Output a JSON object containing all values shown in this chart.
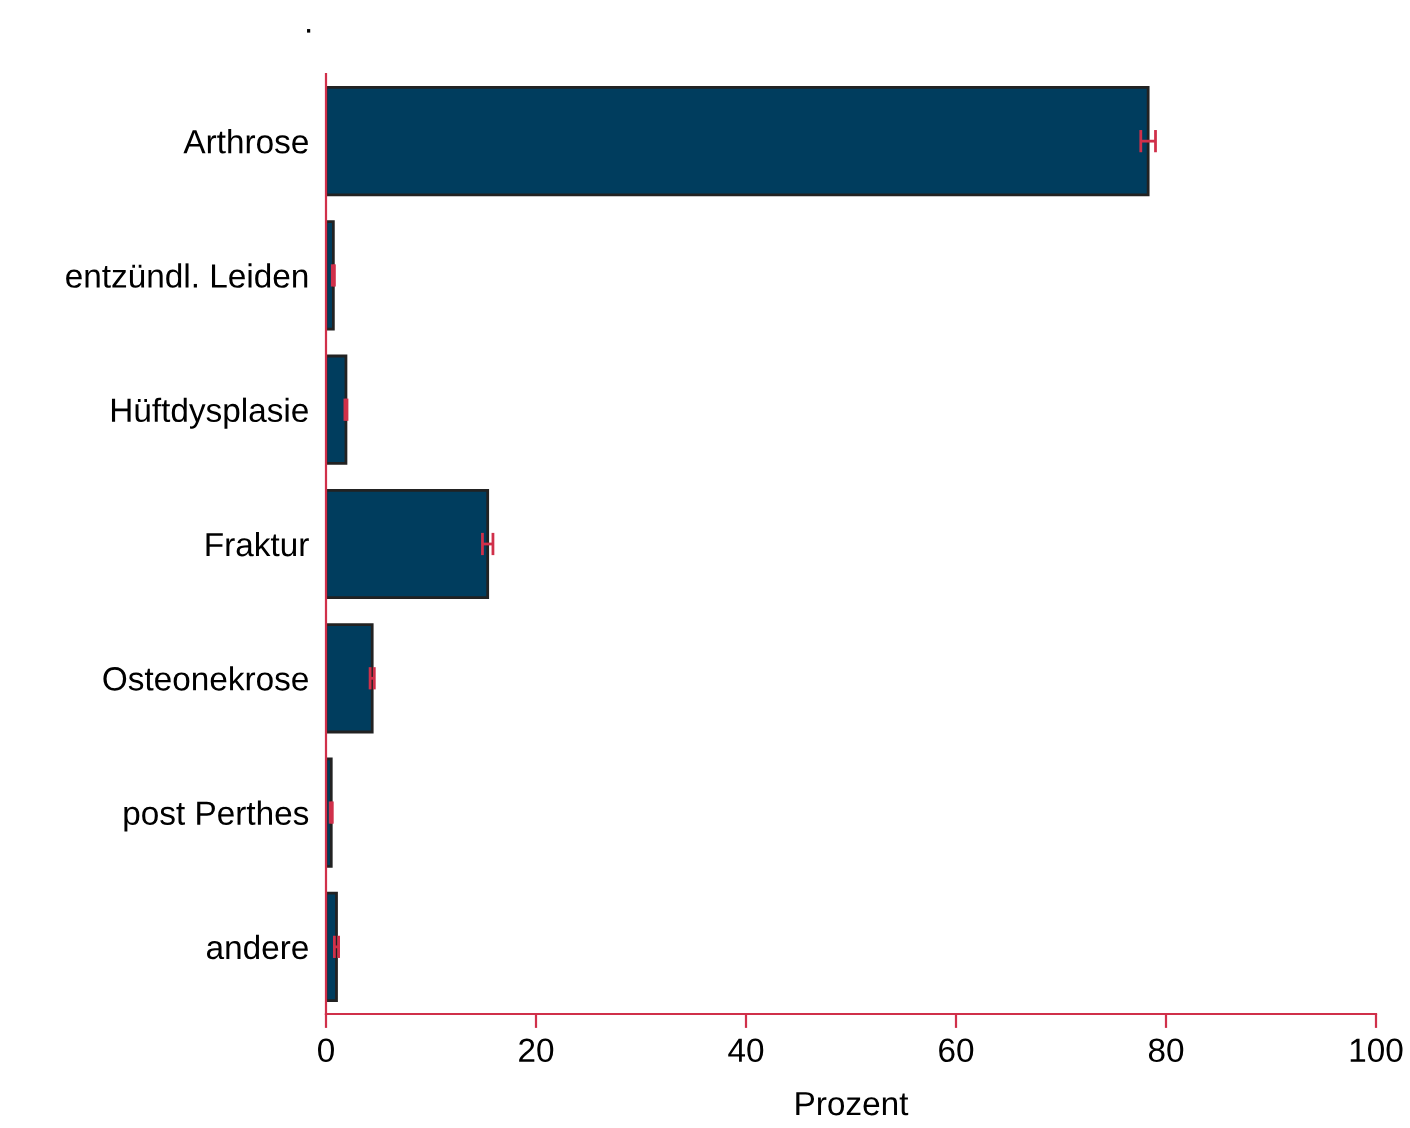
{
  "chart_data": {
    "type": "bar",
    "orientation": "horizontal",
    "title": ".",
    "categories": [
      "Arthrose",
      "entzündl. Leiden",
      "Hüftdysplasie",
      "Fraktur",
      "Osteonekrose",
      "post Perthes",
      "andere"
    ],
    "values": [
      78.3,
      0.7,
      1.9,
      15.4,
      4.4,
      0.5,
      1.0
    ],
    "errors": [
      0.7,
      0.1,
      0.1,
      0.5,
      0.2,
      0.1,
      0.2
    ],
    "color": "#003d5e",
    "xlabel": "Prozent",
    "xlim": [
      0,
      100
    ],
    "xticks": [
      0,
      20,
      40,
      60,
      80,
      100
    ],
    "grid": false,
    "legend": false
  }
}
